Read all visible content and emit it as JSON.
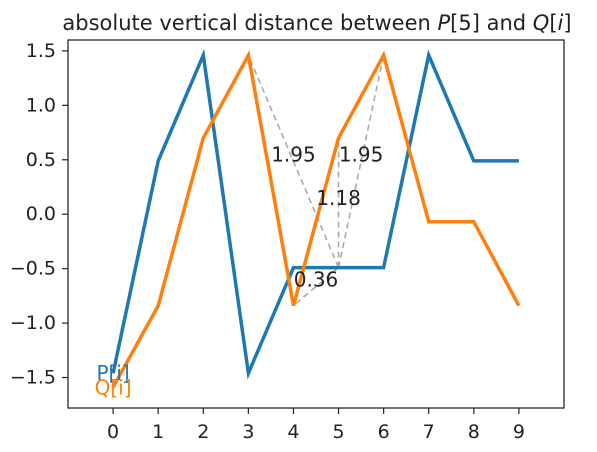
{
  "chart_data": {
    "type": "line",
    "title_parts": [
      "absolute vertical distance between ",
      "P",
      "[5] and ",
      "Q",
      "[",
      "i",
      "]"
    ],
    "x": [
      0,
      1,
      2,
      3,
      4,
      5,
      6,
      7,
      8,
      9
    ],
    "xlim": [
      -1.0,
      10.0
    ],
    "ylim": [
      -1.78,
      1.6
    ],
    "xticks": [
      0,
      1,
      2,
      3,
      4,
      5,
      6,
      7,
      8,
      9
    ],
    "yticks": [
      -1.5,
      -1.0,
      -0.5,
      0.0,
      0.5,
      1.0,
      1.5
    ],
    "ytick_labels": [
      "−1.5",
      "−1.0",
      "−0.5",
      "0.0",
      "0.5",
      "1.0",
      "1.5"
    ],
    "grid": false,
    "series": [
      {
        "id": "P",
        "color": "#1f77b4",
        "values": [
          -1.46,
          0.49,
          1.46,
          -1.46,
          -0.49,
          -0.49,
          -0.49,
          1.46,
          0.49,
          0.49
        ]
      },
      {
        "id": "Q",
        "color": "#ff7f0e",
        "values": [
          -1.59,
          -0.84,
          0.7,
          1.46,
          -0.84,
          0.7,
          1.46,
          -0.07,
          -0.07,
          -0.84
        ]
      }
    ],
    "series_labels": [
      {
        "series": "P",
        "text": "P[i]",
        "x": 0,
        "y": -1.46
      },
      {
        "series": "Q",
        "text": "Q[i]",
        "x": 0,
        "y": -1.59
      }
    ],
    "distance_lines": {
      "color": "#aaaaaa",
      "from": {
        "x": 5,
        "y": -0.49
      },
      "to": [
        {
          "x": 3,
          "y": 1.46
        },
        {
          "x": 4,
          "y": -0.84
        },
        {
          "x": 5,
          "y": 0.7
        },
        {
          "x": 6,
          "y": 1.46
        }
      ]
    },
    "annotations": [
      {
        "text": "1.95",
        "x": 4.0,
        "y": 0.55
      },
      {
        "text": "1.95",
        "x": 5.5,
        "y": 0.55
      },
      {
        "text": "1.18",
        "x": 5.0,
        "y": 0.15
      },
      {
        "text": "0.36",
        "x": 4.5,
        "y": -0.6
      }
    ]
  }
}
